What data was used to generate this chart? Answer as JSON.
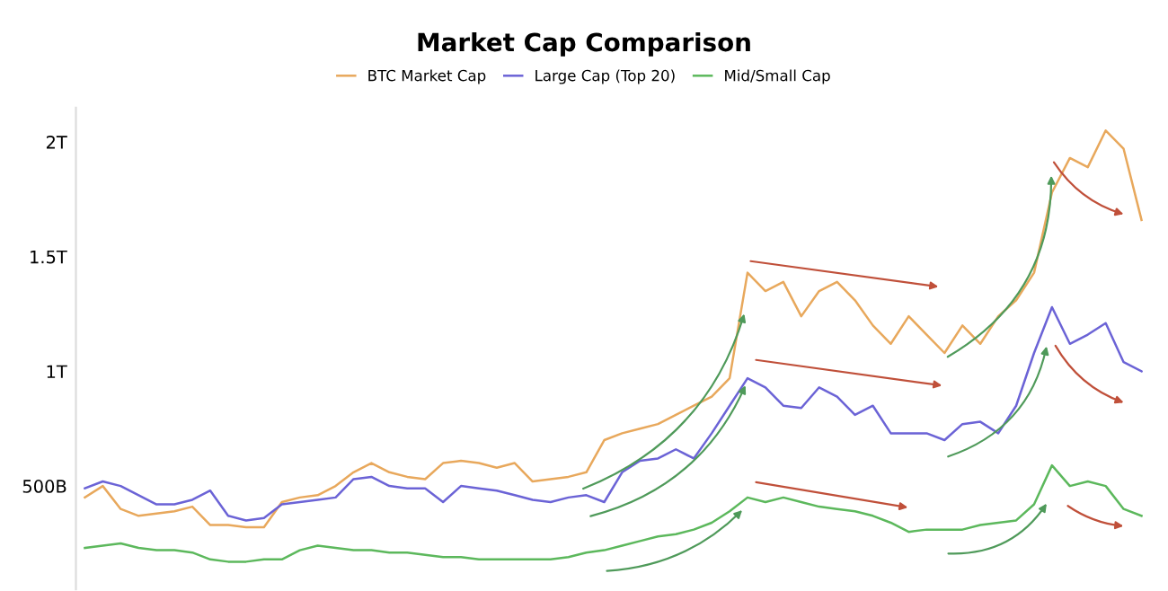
{
  "chart_data": {
    "type": "line",
    "title": "Market Cap Comparison",
    "categories": [
      null,
      null,
      null,
      null,
      null,
      null,
      null,
      null,
      null,
      null,
      null,
      null,
      null,
      null,
      null,
      null,
      null,
      null,
      null,
      null,
      null,
      null,
      null,
      null,
      null,
      null,
      null,
      null,
      null,
      null,
      null,
      null,
      null,
      null,
      null,
      null,
      null,
      null,
      null,
      null,
      null,
      null,
      null,
      null,
      null,
      null,
      null,
      null,
      null,
      null,
      null,
      null,
      null,
      null,
      null,
      null,
      null,
      null,
      null,
      null
    ],
    "series": [
      {
        "name": "BTC Market Cap",
        "color": "#e8a85c",
        "values": [
          450000000000.0,
          500000000000.0,
          400000000000.0,
          370000000000.0,
          380000000000.0,
          390000000000.0,
          410000000000.0,
          330000000000.0,
          330000000000.0,
          320000000000.0,
          320000000000.0,
          430000000000.0,
          450000000000.0,
          460000000000.0,
          500000000000.0,
          560000000000.0,
          600000000000.0,
          560000000000.0,
          540000000000.0,
          530000000000.0,
          600000000000.0,
          610000000000.0,
          600000000000.0,
          580000000000.0,
          600000000000.0,
          520000000000.0,
          530000000000.0,
          540000000000.0,
          560000000000.0,
          700000000000.0,
          730000000000.0,
          750000000000.0,
          770000000000.0,
          810000000000.0,
          850000000000.0,
          890000000000.0,
          970000000000.0,
          1430000000000.0,
          1350000000000.0,
          1390000000000.0,
          1240000000000.0,
          1350000000000.0,
          1390000000000.0,
          1310000000000.0,
          1200000000000.0,
          1120000000000.0,
          1240000000000.0,
          1160000000000.0,
          1080000000000.0,
          1200000000000.0,
          1120000000000.0,
          1240000000000.0,
          1310000000000.0,
          1430000000000.0,
          1780000000000.0,
          1930000000000.0,
          1890000000000.0,
          2050000000000.0,
          1970000000000.0,
          1660000000000.0
        ]
      },
      {
        "name": "Large Cap (Top 20)",
        "color": "#6b63d6",
        "values": [
          490000000000.0,
          520000000000.0,
          500000000000.0,
          460000000000.0,
          420000000000.0,
          420000000000.0,
          440000000000.0,
          480000000000.0,
          370000000000.0,
          350000000000.0,
          360000000000.0,
          420000000000.0,
          430000000000.0,
          440000000000.0,
          450000000000.0,
          530000000000.0,
          540000000000.0,
          500000000000.0,
          490000000000.0,
          490000000000.0,
          430000000000.0,
          500000000000.0,
          490000000000.0,
          480000000000.0,
          460000000000.0,
          440000000000.0,
          430000000000.0,
          450000000000.0,
          460000000000.0,
          430000000000.0,
          560000000000.0,
          610000000000.0,
          620000000000.0,
          660000000000.0,
          620000000000.0,
          730000000000.0,
          850000000000.0,
          970000000000.0,
          930000000000.0,
          850000000000.0,
          840000000000.0,
          930000000000.0,
          890000000000.0,
          810000000000.0,
          850000000000.0,
          730000000000.0,
          730000000000.0,
          730000000000.0,
          700000000000.0,
          770000000000.0,
          780000000000.0,
          730000000000.0,
          850000000000.0,
          1080000000000.0,
          1280000000000.0,
          1120000000000.0,
          1160000000000.0,
          1210000000000.0,
          1040000000000.0,
          1000000000000.0
        ]
      },
      {
        "name": "Mid/Small Cap",
        "color": "#5cb85c",
        "values": [
          230000000000.0,
          240000000000.0,
          250000000000.0,
          230000000000.0,
          220000000000.0,
          220000000000.0,
          210000000000.0,
          180000000000.0,
          170000000000.0,
          170000000000.0,
          180000000000.0,
          180000000000.0,
          220000000000.0,
          240000000000.0,
          230000000000.0,
          220000000000.0,
          220000000000.0,
          210000000000.0,
          210000000000.0,
          200000000000.0,
          190000000000.0,
          190000000000.0,
          180000000000.0,
          180000000000.0,
          180000000000.0,
          180000000000.0,
          180000000000.0,
          190000000000.0,
          210000000000.0,
          220000000000.0,
          240000000000.0,
          260000000000.0,
          280000000000.0,
          290000000000.0,
          310000000000.0,
          340000000000.0,
          390000000000.0,
          450000000000.0,
          430000000000.0,
          450000000000.0,
          430000000000.0,
          410000000000.0,
          400000000000.0,
          390000000000.0,
          370000000000.0,
          340000000000.0,
          300000000000.0,
          310000000000.0,
          310000000000.0,
          310000000000.0,
          330000000000.0,
          340000000000.0,
          350000000000.0,
          420000000000.0,
          590000000000.0,
          500000000000.0,
          520000000000.0,
          500000000000.0,
          400000000000.0,
          370000000000.0
        ]
      }
    ],
    "ylim": [
      50000000000.0,
      2150000000000.0
    ],
    "yticks": [
      {
        "value": 500000000000.0,
        "label": "500B"
      },
      {
        "value": 1000000000000.0,
        "label": "1T"
      },
      {
        "value": 1500000000000.0,
        "label": "1.5T"
      },
      {
        "value": 2000000000000.0,
        "label": "2T"
      }
    ],
    "tick_labels": "y",
    "legend": "top",
    "line_style": "solid"
  }
}
